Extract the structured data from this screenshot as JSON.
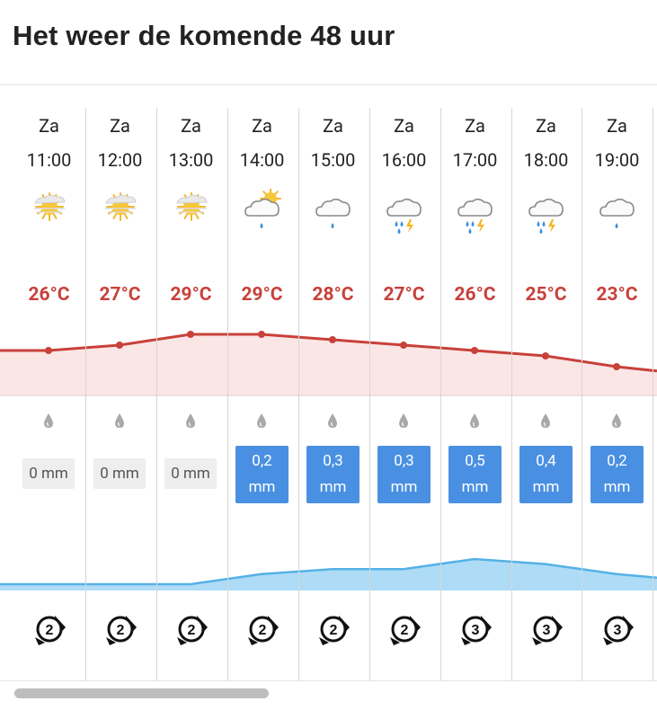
{
  "title": "Het weer de komende 48 uur",
  "colors": {
    "temp": "#c8413a",
    "temp_fill": "#fbe6e6",
    "rain_bar": "#4a90e2",
    "rain_fill": "#aedcf6",
    "rain_line": "#55b1e6"
  },
  "hours": [
    {
      "day": "Za",
      "time": "11:00",
      "icon": "sun-cloud-hazy-icon",
      "temp": "26°C",
      "rain": "0 mm",
      "rain_value": 0,
      "wind": "2"
    },
    {
      "day": "Za",
      "time": "12:00",
      "icon": "sun-cloud-hazy-icon",
      "temp": "27°C",
      "rain": "0 mm",
      "rain_value": 0,
      "wind": "2"
    },
    {
      "day": "Za",
      "time": "13:00",
      "icon": "sun-cloud-hazy-icon",
      "temp": "29°C",
      "rain": "0 mm",
      "rain_value": 0,
      "wind": "2"
    },
    {
      "day": "Za",
      "time": "14:00",
      "icon": "sun-cloud-rain-icon",
      "temp": "29°C",
      "rain_amount": "0,2",
      "rain_unit": "mm",
      "rain_value": 0.2,
      "wind": "2"
    },
    {
      "day": "Za",
      "time": "15:00",
      "icon": "cloud-rain-icon",
      "temp": "28°C",
      "rain_amount": "0,3",
      "rain_unit": "mm",
      "rain_value": 0.3,
      "wind": "2"
    },
    {
      "day": "Za",
      "time": "16:00",
      "icon": "cloud-thunder-rain-icon",
      "temp": "27°C",
      "rain_amount": "0,3",
      "rain_unit": "mm",
      "rain_value": 0.3,
      "wind": "2"
    },
    {
      "day": "Za",
      "time": "17:00",
      "icon": "cloud-thunder-rain-icon",
      "temp": "26°C",
      "rain_amount": "0,5",
      "rain_unit": "mm",
      "rain_value": 0.5,
      "wind": "3"
    },
    {
      "day": "Za",
      "time": "18:00",
      "icon": "cloud-thunder-rain-icon",
      "temp": "25°C",
      "rain_amount": "0,4",
      "rain_unit": "mm",
      "rain_value": 0.4,
      "wind": "3"
    },
    {
      "day": "Za",
      "time": "19:00",
      "icon": "cloud-rain-icon",
      "temp": "23°C",
      "rain_amount": "0,2",
      "rain_unit": "mm",
      "rain_value": 0.2,
      "wind": "3"
    }
  ],
  "chart_data": {
    "type": "line",
    "x": [
      "11:00",
      "12:00",
      "13:00",
      "14:00",
      "15:00",
      "16:00",
      "17:00",
      "18:00",
      "19:00"
    ],
    "series": [
      {
        "values": [
          26,
          27,
          29,
          29,
          28,
          27,
          26,
          25,
          23
        ]
      },
      {
        "values": [
          0,
          0,
          0,
          0.2,
          0.3,
          0.3,
          0.5,
          0.4,
          0.2
        ]
      }
    ]
  }
}
